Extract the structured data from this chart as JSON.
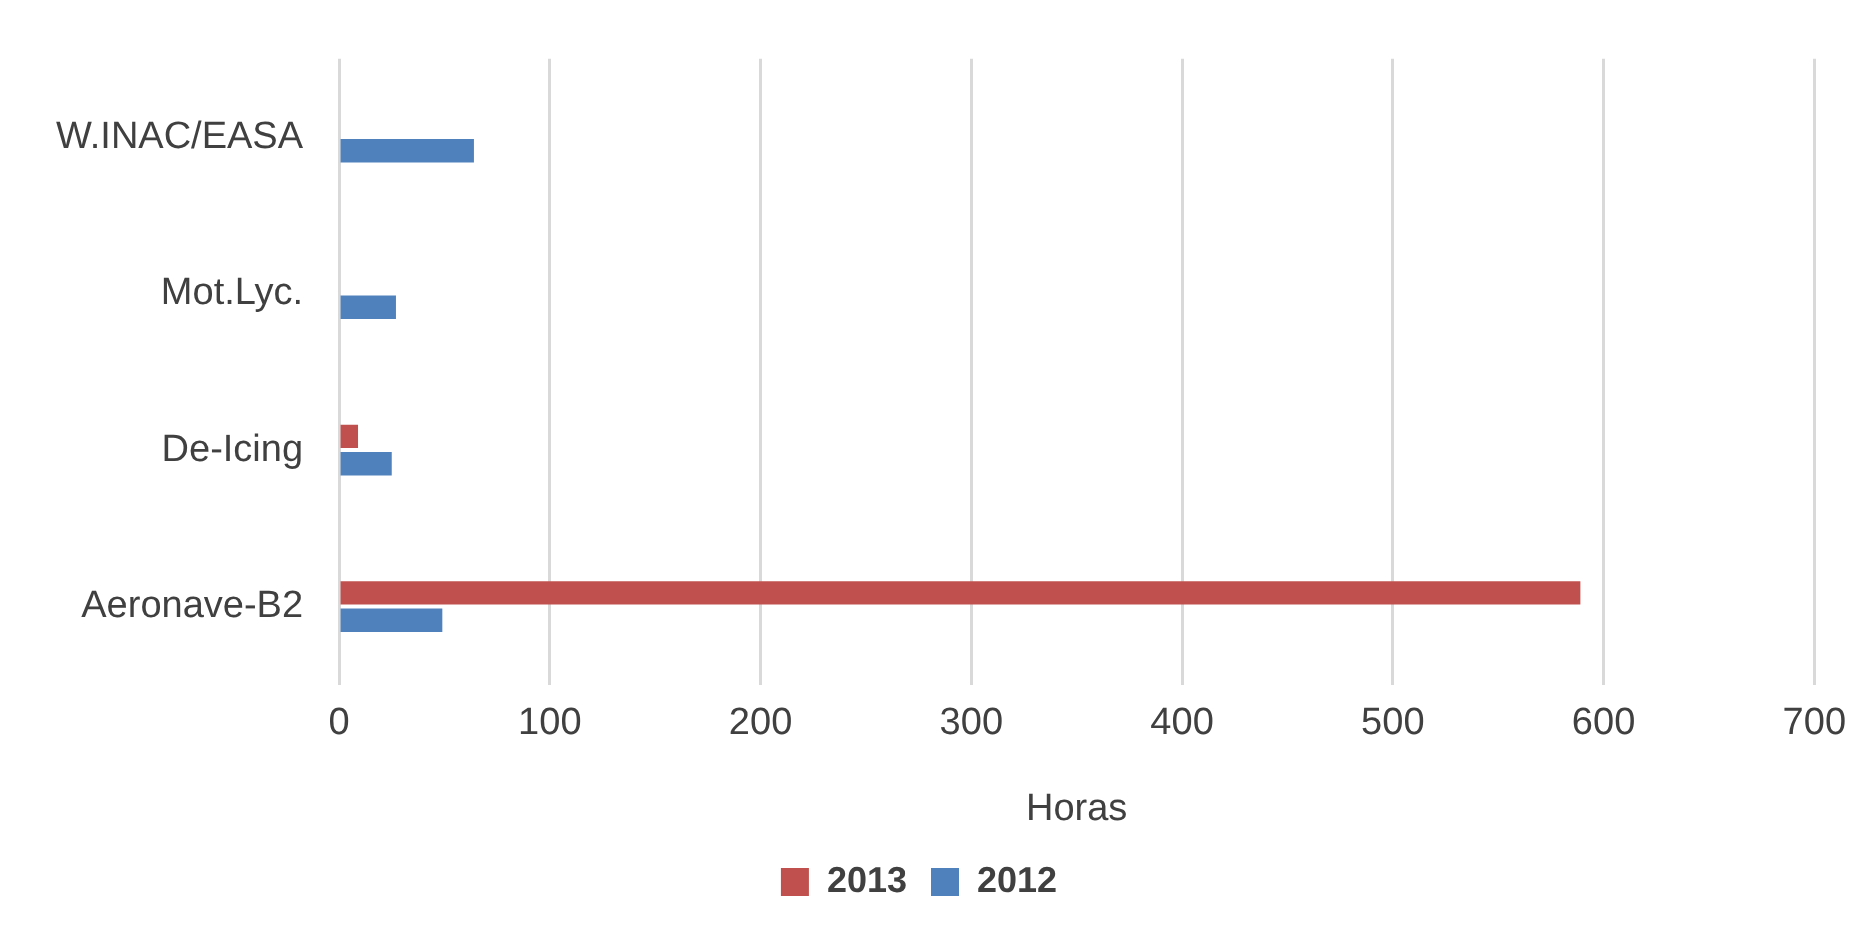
{
  "chart_data": {
    "type": "bar",
    "orientation": "horizontal",
    "xlabel": "Horas",
    "categories": [
      "W.INAC/EASA",
      "Mot.Lyc.",
      "De-Icing",
      "Aeronave-B2"
    ],
    "series": [
      {
        "name": "2013",
        "color": "#c0504d",
        "values": [
          null,
          null,
          9,
          589
        ]
      },
      {
        "name": "2012",
        "color": "#4f81bd",
        "values": [
          64,
          27,
          25,
          49
        ]
      }
    ],
    "xlim": [
      0,
      700
    ],
    "xticks": [
      0,
      100,
      200,
      300,
      400,
      500,
      600,
      700
    ],
    "grid": "x",
    "legend": "bottom"
  }
}
